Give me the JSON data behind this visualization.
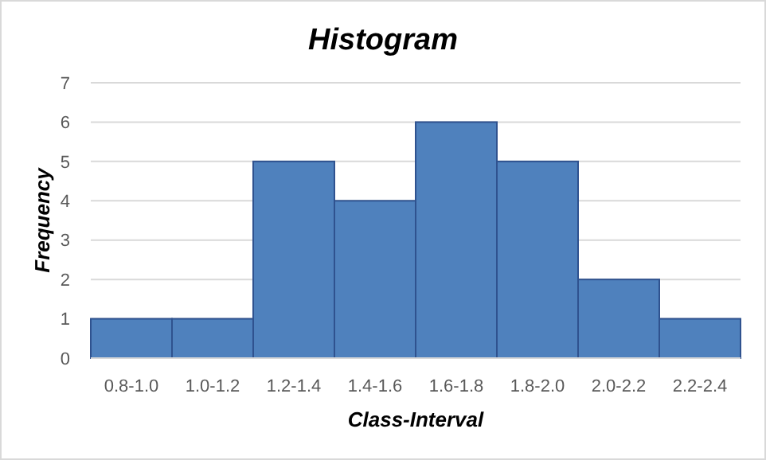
{
  "chart_data": {
    "type": "bar",
    "title": "Histogram",
    "xlabel": "Class-Interval",
    "ylabel": "Frequency",
    "categories": [
      "0.8-1.0",
      "1.0-1.2",
      "1.2-1.4",
      "1.4-1.6",
      "1.6-1.8",
      "1.8-2.0",
      "2.0-2.2",
      "2.2-2.4"
    ],
    "values": [
      1,
      1,
      5,
      4,
      6,
      5,
      2,
      1
    ],
    "color": "#4f81bd",
    "ylim": [
      0,
      7
    ],
    "yticks": [
      0,
      1,
      2,
      3,
      4,
      5,
      6,
      7
    ],
    "grid": "y"
  }
}
